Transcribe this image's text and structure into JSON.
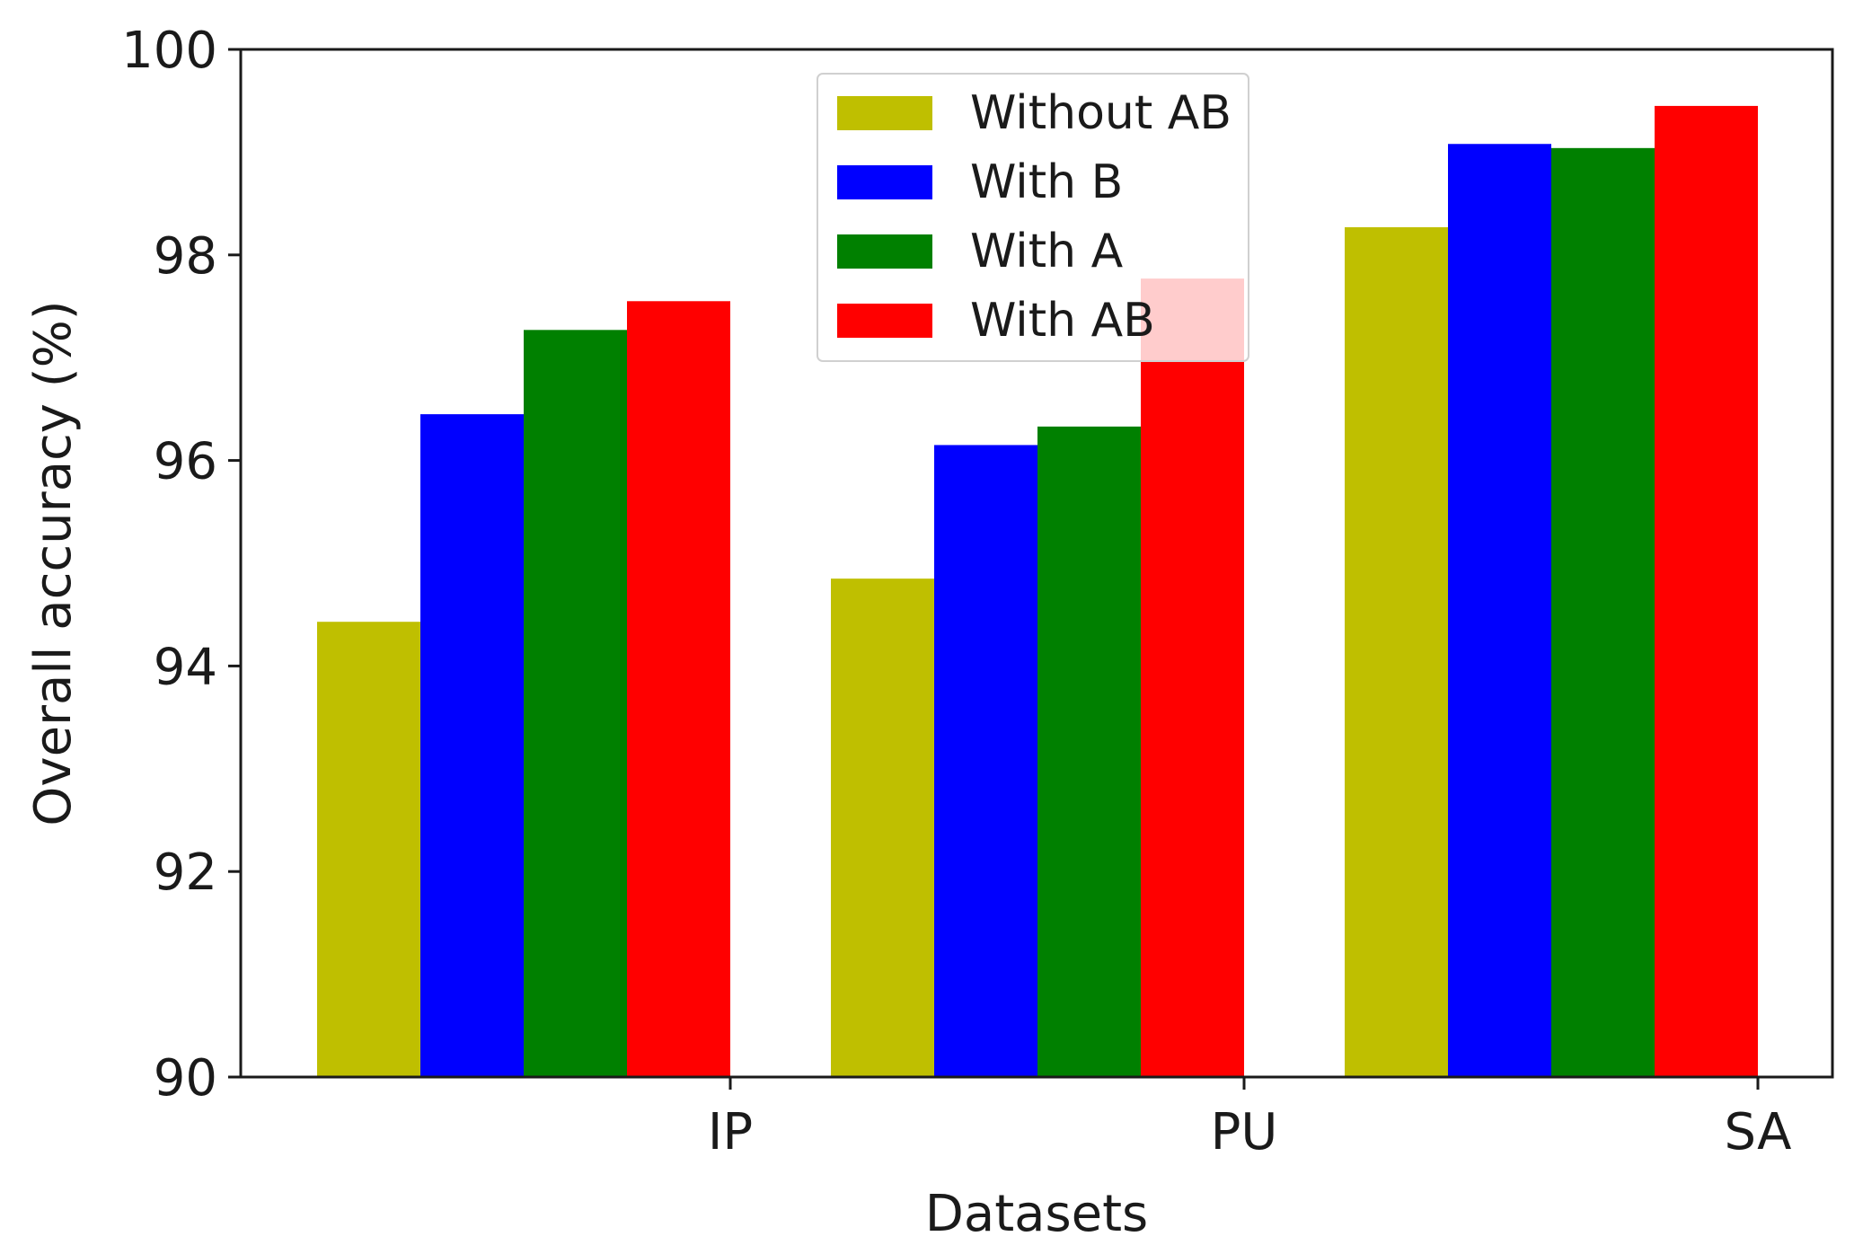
{
  "chart_data": {
    "type": "bar",
    "title": "",
    "xlabel": "Datasets",
    "ylabel": "Overall accuracy (%)",
    "ylim": [
      90,
      100
    ],
    "yticks": [
      "90",
      "92",
      "94",
      "96",
      "98",
      "100"
    ],
    "categories": [
      "IP",
      "PU",
      "SA"
    ],
    "series": [
      {
        "name": "Without AB",
        "color": "#bfbf00",
        "values": [
          94.43,
          94.85,
          98.27
        ]
      },
      {
        "name": "With B",
        "color": "#0000ff",
        "values": [
          96.45,
          96.15,
          99.08
        ]
      },
      {
        "name": "With A",
        "color": "#008000",
        "values": [
          97.27,
          96.33,
          99.04
        ]
      },
      {
        "name": "With AB",
        "color": "#ff0000",
        "values": [
          97.55,
          97.77,
          99.45
        ]
      }
    ],
    "grid": false,
    "legend_position": "top-center"
  }
}
